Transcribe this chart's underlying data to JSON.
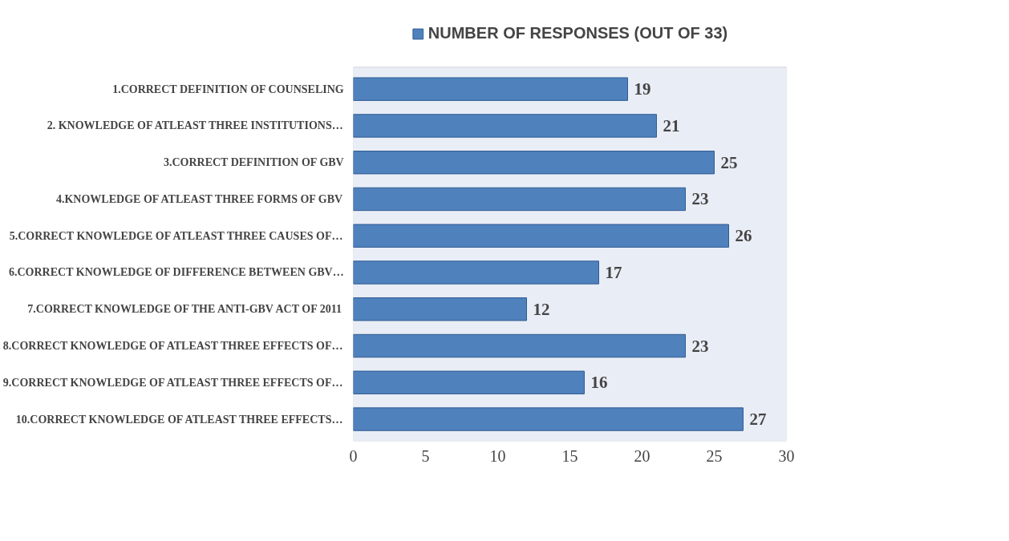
{
  "chart_data": {
    "type": "bar",
    "orientation": "horizontal",
    "categories": [
      "1.CORRECT DEFINITION OF COUNSELING",
      "2. KNOWLEDGE OF ATLEAST THREE INSTITUTIONS…",
      "3.CORRECT DEFINITION OF GBV",
      "4.KNOWLEDGE OF ATLEAST THREE FORMS OF GBV",
      "5.CORRECT KNOWLEDGE OF ATLEAST THREE CAUSES OF…",
      "6.CORRECT KNOWLEDGE OF DIFFERENCE BETWEEN GBV…",
      "7.CORRECT KNOWLEDGE OF THE ANTI-GBV ACT OF 2011",
      "8.CORRECT KNOWLEDGE OF ATLEAST THREE EFFECTS OF…",
      "9.CORRECT KNOWLEDGE OF ATLEAST THREE EFFECTS OF…",
      "10.CORRECT KNOWLEDGE OF ATLEAST THREE EFFECTS…"
    ],
    "series": [
      {
        "name": "NUMBER OF RESPONSES (OUT OF 33)",
        "color": "#4f81bd",
        "values": [
          19,
          21,
          25,
          23,
          26,
          17,
          12,
          23,
          16,
          27
        ]
      }
    ],
    "xlim": [
      0,
      30
    ],
    "xticks": [
      0,
      5,
      10,
      15,
      20,
      25,
      30
    ],
    "data_labels": true,
    "legend": "top"
  }
}
